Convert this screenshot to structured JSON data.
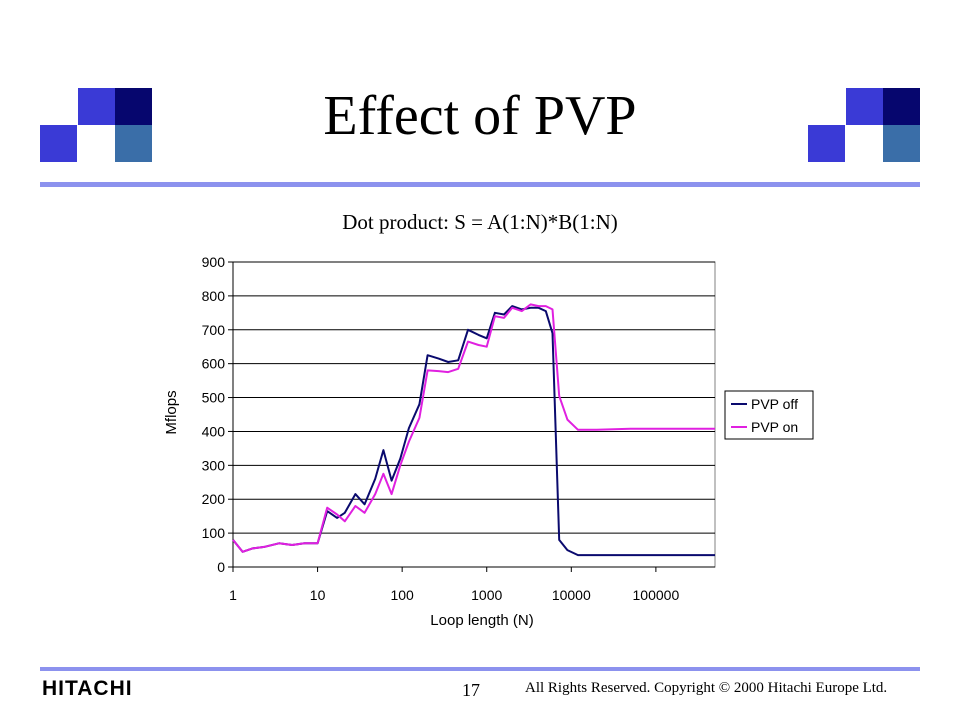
{
  "slide": {
    "title": "Effect of PVP",
    "subtitle": "Dot product: S = A(1:N)*B(1:N)",
    "logo": "HITACHI",
    "page_number": "17",
    "copyright": "All Rights Reserved. Copyright © 2000 Hitachi Europe Ltd.",
    "colors": {
      "accent_rule": "#8c92ee",
      "deco_blue": "#3a3ad6",
      "deco_navy": "#06066e",
      "deco_steel": "#3a6ea8"
    }
  },
  "chart_data": {
    "type": "line",
    "title": "",
    "xlabel": "Loop length (N)",
    "ylabel": "Mflops",
    "x_scale": "log",
    "xlim": [
      1,
      500000
    ],
    "ylim": [
      0,
      900
    ],
    "x_ticks": [
      "1",
      "10",
      "100",
      "1000",
      "10000",
      "100000"
    ],
    "y_ticks": [
      "0",
      "100",
      "200",
      "300",
      "400",
      "500",
      "600",
      "700",
      "800",
      "900"
    ],
    "grid": "horizontal",
    "legend_position": "right",
    "series": [
      {
        "name": "PVP off",
        "color": "#0a0a6e",
        "points": [
          [
            1,
            80
          ],
          [
            1.3,
            45
          ],
          [
            1.7,
            55
          ],
          [
            2.4,
            60
          ],
          [
            3.5,
            70
          ],
          [
            5,
            65
          ],
          [
            7,
            70
          ],
          [
            10,
            70
          ],
          [
            13,
            165
          ],
          [
            17,
            145
          ],
          [
            21,
            160
          ],
          [
            28,
            215
          ],
          [
            36,
            185
          ],
          [
            48,
            260
          ],
          [
            60,
            345
          ],
          [
            75,
            255
          ],
          [
            95,
            320
          ],
          [
            120,
            410
          ],
          [
            160,
            480
          ],
          [
            200,
            625
          ],
          [
            270,
            615
          ],
          [
            350,
            605
          ],
          [
            460,
            610
          ],
          [
            600,
            700
          ],
          [
            800,
            685
          ],
          [
            1000,
            675
          ],
          [
            1250,
            750
          ],
          [
            1600,
            745
          ],
          [
            2000,
            770
          ],
          [
            2600,
            760
          ],
          [
            3300,
            765
          ],
          [
            4100,
            765
          ],
          [
            5000,
            755
          ],
          [
            6000,
            690
          ],
          [
            7200,
            80
          ],
          [
            9000,
            50
          ],
          [
            12000,
            35
          ],
          [
            20000,
            35
          ],
          [
            50000,
            35
          ],
          [
            100000,
            35
          ],
          [
            200000,
            35
          ],
          [
            500000,
            35
          ]
        ]
      },
      {
        "name": "PVP on",
        "color": "#e020e0",
        "points": [
          [
            1,
            80
          ],
          [
            1.3,
            45
          ],
          [
            1.7,
            55
          ],
          [
            2.4,
            60
          ],
          [
            3.5,
            70
          ],
          [
            5,
            65
          ],
          [
            7,
            70
          ],
          [
            10,
            70
          ],
          [
            13,
            175
          ],
          [
            17,
            155
          ],
          [
            21,
            135
          ],
          [
            28,
            180
          ],
          [
            36,
            160
          ],
          [
            48,
            215
          ],
          [
            60,
            275
          ],
          [
            75,
            215
          ],
          [
            95,
            300
          ],
          [
            120,
            370
          ],
          [
            160,
            440
          ],
          [
            200,
            580
          ],
          [
            270,
            578
          ],
          [
            350,
            575
          ],
          [
            460,
            585
          ],
          [
            600,
            665
          ],
          [
            800,
            655
          ],
          [
            1000,
            650
          ],
          [
            1250,
            740
          ],
          [
            1600,
            735
          ],
          [
            2000,
            765
          ],
          [
            2600,
            755
          ],
          [
            3300,
            775
          ],
          [
            4100,
            770
          ],
          [
            5000,
            770
          ],
          [
            6000,
            760
          ],
          [
            7200,
            505
          ],
          [
            9000,
            435
          ],
          [
            12000,
            405
          ],
          [
            20000,
            405
          ],
          [
            50000,
            408
          ],
          [
            100000,
            408
          ],
          [
            200000,
            408
          ],
          [
            500000,
            408
          ]
        ]
      }
    ]
  }
}
